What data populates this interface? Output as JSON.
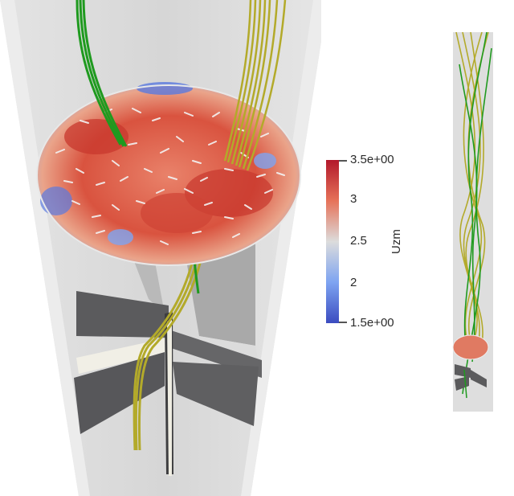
{
  "colormap": {
    "variable": "Uzm",
    "ticks": [
      "3.5e+00",
      "3",
      "2.5",
      "2",
      "1.5e+00"
    ],
    "colors": [
      "#b2182b",
      "#e67259",
      "#dcdcdc",
      "#7ea4f1",
      "#3b4cc0"
    ]
  },
  "colors": {
    "background": "#ffffff",
    "cone": "#dcdcdc",
    "baffle": "#5f5f61",
    "streamline_green": "#1f9a1f",
    "streamline_yellow": "#b3aa2a",
    "vector_glyph": "#efefef"
  }
}
